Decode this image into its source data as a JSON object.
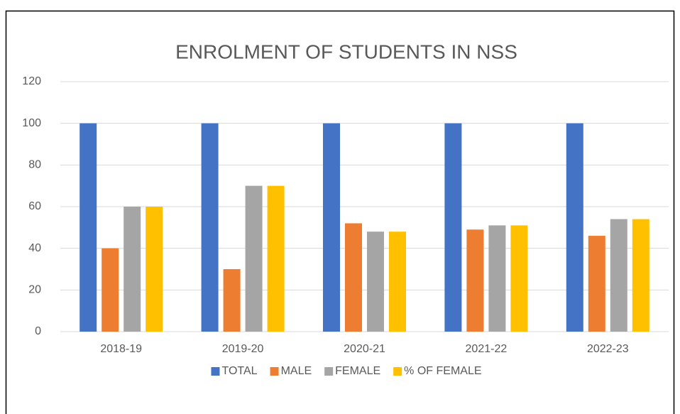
{
  "chart_data": {
    "type": "bar",
    "title": "ENROLMENT OF STUDENTS IN NSS",
    "categories": [
      "2018-19",
      "2019-20",
      "2020-21",
      "2021-22",
      "2022-23"
    ],
    "series": [
      {
        "name": "TOTAL",
        "color": "#4472c4",
        "values": [
          100,
          100,
          100,
          100,
          100
        ]
      },
      {
        "name": "MALE",
        "color": "#ed7d31",
        "values": [
          40,
          30,
          52,
          49,
          46
        ]
      },
      {
        "name": "FEMALE",
        "color": "#a5a5a5",
        "values": [
          60,
          70,
          48,
          51,
          54
        ]
      },
      {
        "name": "% OF FEMALE",
        "color": "#ffc000",
        "values": [
          60,
          70,
          48,
          51,
          54
        ]
      }
    ],
    "ylim": [
      0,
      120
    ],
    "yticks": [
      0,
      20,
      40,
      60,
      80,
      100,
      120
    ],
    "grid": true,
    "legend": "bottom"
  }
}
